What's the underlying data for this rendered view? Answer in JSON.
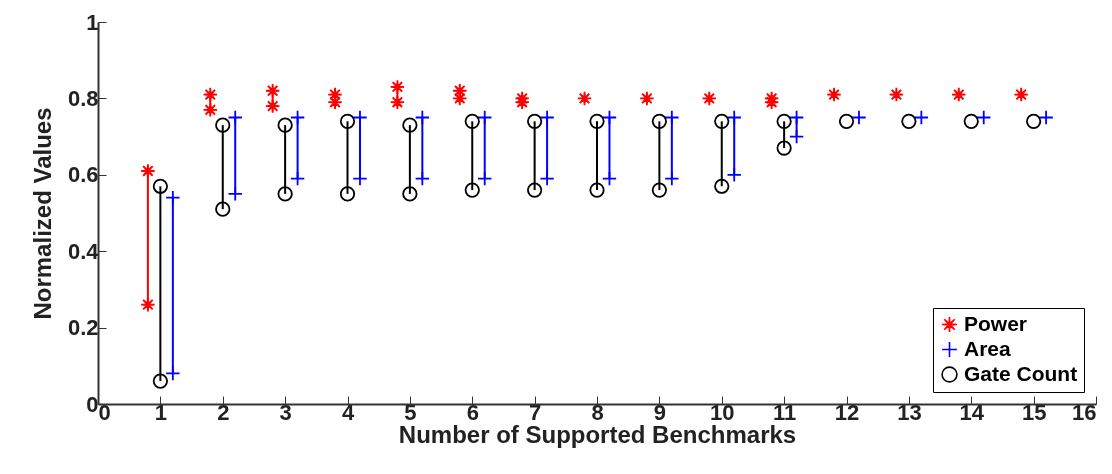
{
  "chart_data": {
    "type": "scatter",
    "xlabel": "Number of Supported Benchmarks",
    "ylabel": "Normalized Values",
    "xlim": [
      0,
      16
    ],
    "xticks": [
      0,
      1,
      2,
      3,
      4,
      5,
      6,
      7,
      8,
      9,
      10,
      11,
      12,
      13,
      14,
      15,
      16
    ],
    "ylim": [
      0,
      1
    ],
    "yticks": [
      0,
      0.2,
      0.4,
      0.6,
      0.8,
      1
    ],
    "grid": false,
    "legend": "bottom right",
    "series": [
      {
        "name": "Power",
        "color": "#ff0000",
        "marker": "star",
        "x": [
          0.8,
          1.8,
          2.8,
          3.8,
          4.8,
          5.8,
          6.8,
          7.8,
          8.8,
          9.8,
          10.8,
          11.8,
          12.8,
          13.8,
          14.8
        ],
        "values": [
          0.61,
          0.81,
          0.82,
          0.81,
          0.83,
          0.82,
          0.8,
          0.8,
          0.8,
          0.8,
          0.8,
          0.81,
          0.81,
          0.81,
          0.81
        ],
        "errors": [
          [
            0.26,
            0.61
          ],
          [
            0.77,
            0.81
          ],
          [
            0.78,
            0.82
          ],
          [
            0.79,
            0.81
          ],
          [
            0.79,
            0.83
          ],
          [
            0.8,
            0.82
          ],
          [
            0.79,
            0.8
          ],
          null,
          null,
          null,
          [
            0.79,
            0.8
          ],
          null,
          null,
          null,
          null
        ]
      },
      {
        "name": "Area",
        "color": "#0000ff",
        "marker": "cross",
        "x": [
          1.2,
          2.2,
          3.2,
          4.2,
          5.2,
          6.2,
          7.2,
          8.2,
          9.2,
          10.2,
          11.2,
          12.2,
          13.2,
          14.2,
          15.2
        ],
        "values": [
          0.54,
          0.75,
          0.75,
          0.75,
          0.75,
          0.75,
          0.75,
          0.75,
          0.75,
          0.75,
          0.75,
          0.75,
          0.75,
          0.75,
          0.75
        ],
        "errors": [
          [
            0.08,
            0.54
          ],
          [
            0.55,
            0.75
          ],
          [
            0.59,
            0.75
          ],
          [
            0.59,
            0.75
          ],
          [
            0.59,
            0.75
          ],
          [
            0.59,
            0.75
          ],
          [
            0.59,
            0.75
          ],
          [
            0.59,
            0.75
          ],
          [
            0.59,
            0.75
          ],
          [
            0.6,
            0.75
          ],
          [
            0.7,
            0.75
          ],
          null,
          null,
          null,
          null
        ]
      },
      {
        "name": "Gate Count",
        "color": "#000000",
        "marker": "circle",
        "x": [
          1,
          2,
          3,
          4,
          5,
          6,
          7,
          8,
          9,
          10,
          11,
          12,
          13,
          14,
          15
        ],
        "values": [
          0.57,
          0.73,
          0.73,
          0.74,
          0.73,
          0.74,
          0.74,
          0.74,
          0.74,
          0.74,
          0.74,
          0.74,
          0.74,
          0.74,
          0.74
        ],
        "errors": [
          [
            0.06,
            0.57
          ],
          [
            0.51,
            0.73
          ],
          [
            0.55,
            0.73
          ],
          [
            0.55,
            0.74
          ],
          [
            0.55,
            0.73
          ],
          [
            0.56,
            0.74
          ],
          [
            0.56,
            0.74
          ],
          [
            0.56,
            0.74
          ],
          [
            0.56,
            0.74
          ],
          [
            0.57,
            0.74
          ],
          [
            0.67,
            0.74
          ],
          null,
          null,
          null,
          null
        ]
      },
      {
        "color": "#ff0000",
        "marker": "star",
        "x": [
          0.8,
          1.8,
          2.8,
          3.8,
          4.8,
          5.8,
          6.8,
          10.8
        ],
        "values": [
          0.26,
          0.77,
          0.78,
          0.79,
          0.79,
          0.8,
          0.79,
          0.79
        ]
      },
      {
        "color": "#0000ff",
        "marker": "cross",
        "x": [
          1.2,
          2.2,
          3.2,
          4.2,
          5.2,
          6.2,
          7.2,
          8.2,
          9.2,
          10.2,
          11.2
        ],
        "values": [
          0.08,
          0.55,
          0.59,
          0.59,
          0.59,
          0.59,
          0.59,
          0.59,
          0.59,
          0.6,
          0.7
        ]
      },
      {
        "color": "#000000",
        "marker": "circle",
        "x": [
          1,
          2,
          3,
          4,
          5,
          6,
          7,
          8,
          9,
          10,
          11
        ],
        "values": [
          0.06,
          0.51,
          0.55,
          0.55,
          0.55,
          0.56,
          0.56,
          0.56,
          0.56,
          0.57,
          0.67
        ]
      }
    ]
  }
}
